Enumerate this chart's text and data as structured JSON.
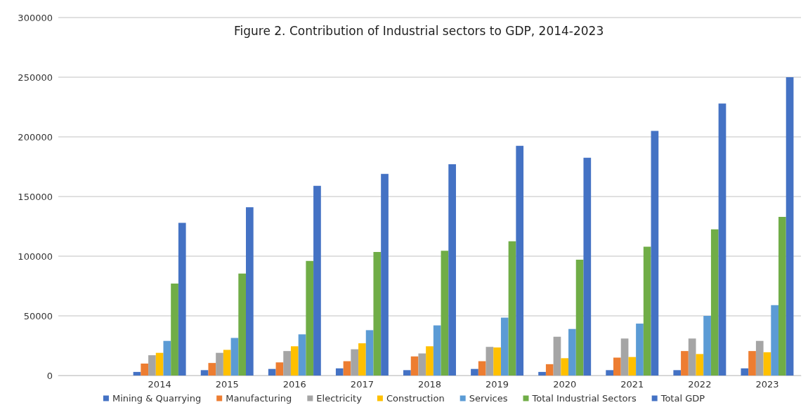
{
  "chart_data": {
    "type": "bar",
    "title": "Figure 2. Contribution of Industrial sectors to GDP, 2014-2023",
    "categories": [
      null,
      "2014",
      "2015",
      "2016",
      "2017",
      "2018",
      "2019",
      "2020",
      "2021",
      "2022",
      "2023"
    ],
    "series": [
      {
        "name": "Mining & Quarrying",
        "color": "#4472c4",
        "values": [
          null,
          3000,
          4500,
          5500,
          6000,
          4500,
          5500,
          3000,
          4500,
          4500,
          6000
        ]
      },
      {
        "name": "Manufacturing",
        "color": "#ed7d31",
        "values": [
          null,
          10000,
          10500,
          11000,
          12000,
          16000,
          12000,
          9500,
          15000,
          20500,
          20500
        ]
      },
      {
        "name": "Electricity",
        "color": "#a5a5a5",
        "values": [
          null,
          17000,
          19000,
          20500,
          22000,
          18500,
          24000,
          32500,
          31000,
          31000,
          29000
        ]
      },
      {
        "name": "Construction",
        "color": "#ffc000",
        "values": [
          null,
          19000,
          21500,
          24500,
          27000,
          24500,
          23500,
          14500,
          15500,
          18000,
          19500
        ]
      },
      {
        "name": "Services",
        "color": "#5b9bd5",
        "values": [
          null,
          29000,
          31500,
          34500,
          38000,
          42000,
          48500,
          39000,
          43500,
          50000,
          59000
        ]
      },
      {
        "name": "Total Industrial Sectors",
        "color": "#70ad47",
        "values": [
          null,
          77000,
          85500,
          96000,
          103500,
          104500,
          112500,
          97000,
          108000,
          122500,
          133000
        ]
      },
      {
        "name": "Total GDP",
        "color": "#4472c4",
        "values": [
          null,
          128000,
          141000,
          159000,
          169000,
          177000,
          192500,
          182500,
          205000,
          228000,
          250000
        ]
      }
    ],
    "ylim": [
      0,
      300000
    ],
    "yticks": [
      0,
      50000,
      100000,
      150000,
      200000,
      250000,
      300000
    ],
    "grid": "y",
    "legend": "bottom"
  }
}
